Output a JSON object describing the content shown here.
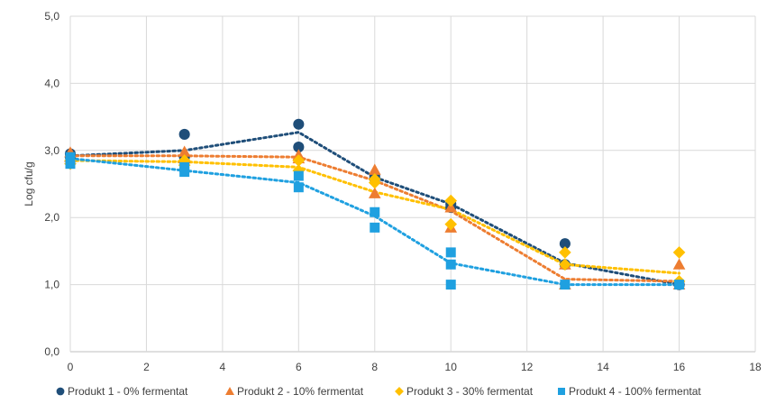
{
  "chart_data": {
    "type": "scatter",
    "ylabel": "Log cfu/g",
    "xlim": [
      0,
      18
    ],
    "ylim": [
      0,
      5
    ],
    "x_ticks": [
      "0",
      "2",
      "4",
      "6",
      "8",
      "10",
      "12",
      "14",
      "16",
      "18"
    ],
    "y_ticks": [
      "0,0",
      "1,0",
      "2,0",
      "3,0",
      "4,0",
      "5,0"
    ],
    "grid": true,
    "legend_position": "bottom",
    "series": [
      {
        "name": "Produkt 1 - 0% fermentat",
        "color": "#1f4e79",
        "marker": "circle",
        "points": [
          [
            0,
            2.9
          ],
          [
            0,
            2.95
          ],
          [
            3,
            3.24
          ],
          [
            3,
            2.9
          ],
          [
            6,
            3.39
          ],
          [
            6,
            3.05
          ],
          [
            8,
            2.62
          ],
          [
            8,
            2.58
          ],
          [
            10,
            2.2
          ],
          [
            10,
            2.15
          ],
          [
            13,
            1.61
          ],
          [
            13,
            1.3
          ],
          [
            16,
            1.0
          ],
          [
            16,
            1.0
          ]
        ],
        "trend": [
          [
            0,
            2.92
          ],
          [
            3,
            3.0
          ],
          [
            6,
            3.27
          ],
          [
            8,
            2.6
          ],
          [
            10,
            2.2
          ],
          [
            13,
            1.32
          ],
          [
            16,
            1.0
          ]
        ]
      },
      {
        "name": "Produkt 2 - 10% fermentat",
        "color": "#ed7d31",
        "marker": "triangle",
        "points": [
          [
            0,
            2.97
          ],
          [
            0,
            2.9
          ],
          [
            3,
            2.98
          ],
          [
            3,
            2.88
          ],
          [
            6,
            2.93
          ],
          [
            6,
            2.88
          ],
          [
            8,
            2.71
          ],
          [
            8,
            2.36
          ],
          [
            10,
            1.85
          ],
          [
            10,
            2.15
          ],
          [
            13,
            1.3
          ],
          [
            13,
            1.0
          ],
          [
            16,
            1.3
          ],
          [
            16,
            1.0
          ]
        ],
        "trend": [
          [
            0,
            2.92
          ],
          [
            3,
            2.92
          ],
          [
            6,
            2.9
          ],
          [
            8,
            2.55
          ],
          [
            10,
            2.1
          ],
          [
            13,
            1.08
          ],
          [
            16,
            1.05
          ]
        ]
      },
      {
        "name": "Produkt 3 - 30% fermentat",
        "color": "#ffc000",
        "marker": "diamond",
        "points": [
          [
            0,
            2.8
          ],
          [
            0,
            2.85
          ],
          [
            3,
            2.85
          ],
          [
            3,
            2.78
          ],
          [
            6,
            2.85
          ],
          [
            6,
            2.7
          ],
          [
            8,
            2.52
          ],
          [
            8,
            2.57
          ],
          [
            10,
            1.9
          ],
          [
            10,
            2.25
          ],
          [
            13,
            1.48
          ],
          [
            13,
            1.3
          ],
          [
            16,
            1.48
          ],
          [
            16,
            1.05
          ]
        ],
        "trend": [
          [
            0,
            2.85
          ],
          [
            3,
            2.83
          ],
          [
            6,
            2.75
          ],
          [
            8,
            2.38
          ],
          [
            10,
            2.12
          ],
          [
            13,
            1.3
          ],
          [
            16,
            1.17
          ]
        ]
      },
      {
        "name": "Produkt 4 - 100% fermentat",
        "color": "#1fa0e0",
        "marker": "square",
        "points": [
          [
            0,
            2.9
          ],
          [
            0,
            2.8
          ],
          [
            3,
            2.75
          ],
          [
            3,
            2.68
          ],
          [
            6,
            2.62
          ],
          [
            6,
            2.45
          ],
          [
            8,
            2.08
          ],
          [
            8,
            1.85
          ],
          [
            10,
            1.48
          ],
          [
            10,
            1.3
          ],
          [
            10,
            1.0
          ],
          [
            13,
            1.0
          ],
          [
            16,
            1.0
          ]
        ],
        "trend": [
          [
            0,
            2.88
          ],
          [
            3,
            2.7
          ],
          [
            6,
            2.52
          ],
          [
            8,
            2.02
          ],
          [
            10,
            1.32
          ],
          [
            13,
            1.0
          ],
          [
            16,
            1.0
          ]
        ]
      }
    ]
  }
}
